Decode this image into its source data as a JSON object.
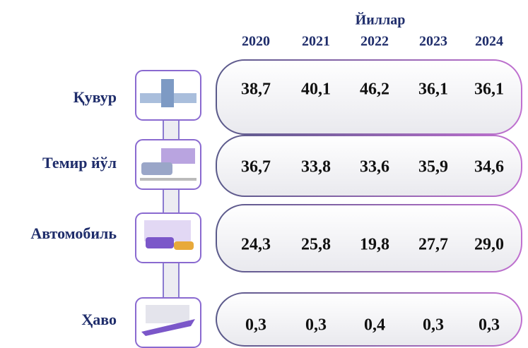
{
  "header": {
    "title": "Йиллар",
    "years": [
      "2020",
      "2021",
      "2022",
      "2023",
      "2024"
    ]
  },
  "table": {
    "rows": [
      {
        "label": "Қувур",
        "values": [
          "38,7",
          "40,1",
          "46,2",
          "36,1",
          "36,1"
        ]
      },
      {
        "label": "Темир йўл",
        "values": [
          "36,7",
          "33,8",
          "33,6",
          "35,9",
          "34,6"
        ]
      },
      {
        "label": "Автомобиль",
        "values": [
          "24,3",
          "25,8",
          "19,8",
          "27,7",
          "29,0"
        ]
      },
      {
        "label": "Ҳаво",
        "values": [
          "0,3",
          "0,3",
          "0,4",
          "0,3",
          "0,3"
        ]
      }
    ]
  }
}
